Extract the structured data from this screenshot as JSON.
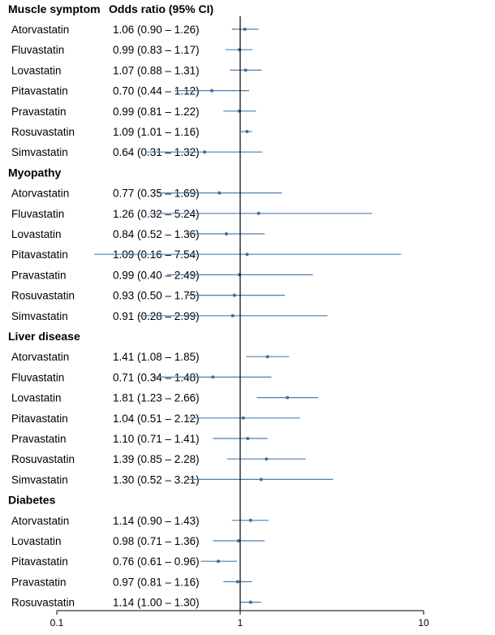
{
  "chart_data": {
    "type": "forest",
    "columns": {
      "group": "Muscle symptom",
      "or": "Odds ratio (95% CI)"
    },
    "x_ticks": [
      {
        "value": 0.1,
        "label": "0.1"
      },
      {
        "value": 1,
        "label": "1"
      },
      {
        "value": 10,
        "label": "10"
      }
    ],
    "xlim": [
      0.1,
      10
    ],
    "reference_value": 1,
    "groups": [
      {
        "name": "Muscle symptom",
        "rows": [
          {
            "drug": "Atorvastatin",
            "or": 1.06,
            "lo": 0.9,
            "hi": 1.26,
            "text": "1.06 (0.90 – 1.26)"
          },
          {
            "drug": "Fluvastatin",
            "or": 0.99,
            "lo": 0.83,
            "hi": 1.17,
            "text": "0.99 (0.83 – 1.17)"
          },
          {
            "drug": "Lovastatin",
            "or": 1.07,
            "lo": 0.88,
            "hi": 1.31,
            "text": "1.07 (0.88 – 1.31)"
          },
          {
            "drug": "Pitavastatin",
            "or": 0.7,
            "lo": 0.44,
            "hi": 1.12,
            "text": "0.70 (0.44 – 1.12)"
          },
          {
            "drug": "Pravastatin",
            "or": 0.99,
            "lo": 0.81,
            "hi": 1.22,
            "text": "0.99 (0.81 – 1.22)"
          },
          {
            "drug": "Rosuvastatin",
            "or": 1.09,
            "lo": 1.01,
            "hi": 1.16,
            "text": "1.09 (1.01 – 1.16)"
          },
          {
            "drug": "Simvastatin",
            "or": 0.64,
            "lo": 0.31,
            "hi": 1.32,
            "text": "0.64 (0.31 – 1.32)"
          }
        ]
      },
      {
        "name": "Myopathy",
        "rows": [
          {
            "drug": "Atorvastatin",
            "or": 0.77,
            "lo": 0.35,
            "hi": 1.69,
            "text": "0.77 (0.35 – 1.69)"
          },
          {
            "drug": "Fluvastatin",
            "or": 1.26,
            "lo": 0.32,
            "hi": 5.24,
            "text": "1.26 (0.32 – 5.24)"
          },
          {
            "drug": "Lovastatin",
            "or": 0.84,
            "lo": 0.52,
            "hi": 1.36,
            "text": "0.84 (0.52 – 1.36)"
          },
          {
            "drug": "Pitavastatin",
            "or": 1.09,
            "lo": 0.16,
            "hi": 7.54,
            "text": "1.09 (0.16 – 7.54)"
          },
          {
            "drug": "Pravastatin",
            "or": 0.99,
            "lo": 0.4,
            "hi": 2.49,
            "text": "0.99 (0.40 – 2.49)"
          },
          {
            "drug": "Rosuvastatin",
            "or": 0.93,
            "lo": 0.5,
            "hi": 1.75,
            "text": "0.93 (0.50 – 1.75)"
          },
          {
            "drug": "Simvastatin",
            "or": 0.91,
            "lo": 0.28,
            "hi": 2.99,
            "text": "0.91 (0.28 – 2.99)"
          }
        ]
      },
      {
        "name": "Liver disease",
        "rows": [
          {
            "drug": "Atorvastatin",
            "or": 1.41,
            "lo": 1.08,
            "hi": 1.85,
            "text": "1.41 (1.08 – 1.85)"
          },
          {
            "drug": "Fluvastatin",
            "or": 0.71,
            "lo": 0.34,
            "hi": 1.48,
            "text": "0.71 (0.34 – 1.48)"
          },
          {
            "drug": "Lovastatin",
            "or": 1.81,
            "lo": 1.23,
            "hi": 2.66,
            "text": "1.81 (1.23 – 2.66)"
          },
          {
            "drug": "Pitavastatin",
            "or": 1.04,
            "lo": 0.51,
            "hi": 2.12,
            "text": "1.04 (0.51 – 2.12)"
          },
          {
            "drug": "Pravastatin",
            "or": 1.1,
            "lo": 0.71,
            "hi": 1.41,
            "text": "1.10 (0.71 – 1.41)"
          },
          {
            "drug": "Rosuvastatin",
            "or": 1.39,
            "lo": 0.85,
            "hi": 2.28,
            "text": "1.39 (0.85 – 2.28)"
          },
          {
            "drug": "Simvastatin",
            "or": 1.3,
            "lo": 0.52,
            "hi": 3.21,
            "text": "1.30 (0.52 – 3.21)"
          }
        ]
      },
      {
        "name": "Diabetes",
        "rows": [
          {
            "drug": "Atorvastatin",
            "or": 1.14,
            "lo": 0.9,
            "hi": 1.43,
            "text": "1.14 (0.90 – 1.43)"
          },
          {
            "drug": "Lovastatin",
            "or": 0.98,
            "lo": 0.71,
            "hi": 1.36,
            "text": "0.98 (0.71 – 1.36)"
          },
          {
            "drug": "Pitavastatin",
            "or": 0.76,
            "lo": 0.61,
            "hi": 0.96,
            "text": "0.76 (0.61 – 0.96)"
          },
          {
            "drug": "Pravastatin",
            "or": 0.97,
            "lo": 0.81,
            "hi": 1.16,
            "text": "0.97 (0.81 – 1.16)"
          },
          {
            "drug": "Rosuvastatin",
            "or": 1.14,
            "lo": 1.0,
            "hi": 1.3,
            "text": "1.14 (1.00 – 1.30)"
          }
        ]
      }
    ]
  },
  "colors": {
    "ci_line": "#4f7faf",
    "point": "#3e6e9e",
    "axis": "#000000"
  }
}
